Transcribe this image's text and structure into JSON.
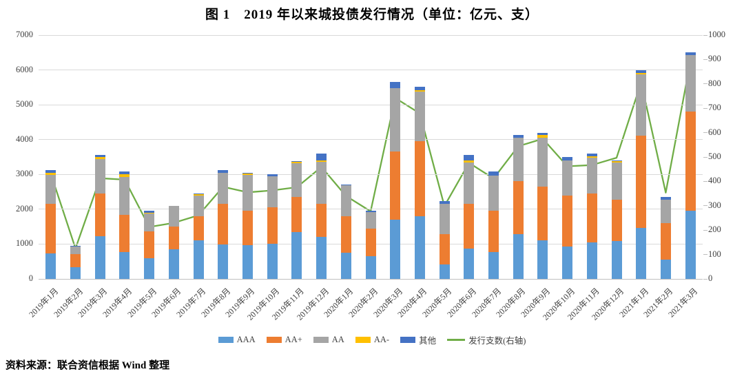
{
  "title": "图 1　2019 年以来城投债发行情况（单位：亿元、支）",
  "source": "资料来源：联合资信根据 Wind 整理",
  "colors": {
    "AAA": "#5B9BD5",
    "AA+": "#ED7D31",
    "AA": "#A5A5A5",
    "AA-": "#FFC000",
    "其他": "#4472C4",
    "line": "#70AD47",
    "gridline": "#D9D9D9",
    "axis_text": "#404040"
  },
  "chart_data": {
    "type": "bar",
    "subtype": "stacked-bar-with-line",
    "grid": true,
    "legend_position": "bottom",
    "categories": [
      "2019年1月",
      "2019年2月",
      "2019年3月",
      "2019年4月",
      "2019年5月",
      "2019年6月",
      "2019年7月",
      "2019年8月",
      "2019年9月",
      "2019年10月",
      "2019年11月",
      "2019年12月",
      "2020年1月",
      "2020年2月",
      "2020年3月",
      "2020年4月",
      "2020年5月",
      "2020年6月",
      "2020年7月",
      "2020年8月",
      "2020年9月",
      "2020年10月",
      "2020年11月",
      "2020年12月",
      "2021年1月",
      "2021年2月",
      "2021年3月"
    ],
    "series": [
      {
        "name": "AAA",
        "type": "bar",
        "axis": "left",
        "color": "#5B9BD5",
        "values": [
          730,
          340,
          1230,
          780,
          600,
          850,
          1100,
          980,
          965,
          1000,
          1350,
          1200,
          750,
          650,
          1700,
          1800,
          420,
          870,
          780,
          1280,
          1100,
          930,
          1050,
          1080,
          1470,
          560,
          1950
        ]
      },
      {
        "name": "AA+",
        "type": "bar",
        "axis": "left",
        "color": "#ED7D31",
        "values": [
          1420,
          380,
          1220,
          1060,
          760,
          650,
          700,
          1170,
          985,
          1050,
          1000,
          950,
          1050,
          800,
          1950,
          2150,
          860,
          1280,
          1170,
          1520,
          1550,
          1470,
          1400,
          1200,
          2650,
          1040,
          2850
        ]
      },
      {
        "name": "AA",
        "type": "bar",
        "axis": "left",
        "color": "#A5A5A5",
        "values": [
          840,
          210,
          1000,
          1080,
          510,
          600,
          600,
          900,
          1040,
          900,
          970,
          1210,
          880,
          470,
          1830,
          1420,
          870,
          1200,
          1020,
          1260,
          1410,
          1010,
          1030,
          1070,
          1750,
          680,
          1630
        ]
      },
      {
        "name": "AA-",
        "type": "bar",
        "axis": "left",
        "color": "#FFC000",
        "values": [
          60,
          0,
          50,
          80,
          20,
          0,
          30,
          0,
          30,
          0,
          40,
          40,
          0,
          0,
          0,
          40,
          0,
          50,
          0,
          0,
          80,
          0,
          40,
          30,
          50,
          0,
          0
        ]
      },
      {
        "name": "其他",
        "type": "bar",
        "axis": "left",
        "color": "#4472C4",
        "values": [
          70,
          20,
          50,
          80,
          60,
          0,
          20,
          65,
          30,
          50,
          20,
          200,
          30,
          30,
          185,
          100,
          80,
          150,
          110,
          80,
          60,
          90,
          80,
          20,
          80,
          80,
          70
        ]
      },
      {
        "name": "发行支数(右轴)",
        "type": "line",
        "axis": "right",
        "color": "#70AD47",
        "values": [
          430,
          125,
          413,
          407,
          213,
          230,
          261,
          378,
          355,
          363,
          376,
          459,
          340,
          277,
          742,
          679,
          299,
          476,
          412,
          544,
          575,
          462,
          467,
          497,
          806,
          354,
          890
        ]
      }
    ],
    "left_axis": {
      "min": 0,
      "max": 7000,
      "ticks": [
        0,
        1000,
        2000,
        3000,
        4000,
        5000,
        6000,
        7000
      ]
    },
    "right_axis": {
      "min": 0,
      "max": 1000,
      "ticks": [
        0,
        100,
        200,
        300,
        400,
        500,
        600,
        700,
        800,
        900,
        1000
      ]
    }
  }
}
